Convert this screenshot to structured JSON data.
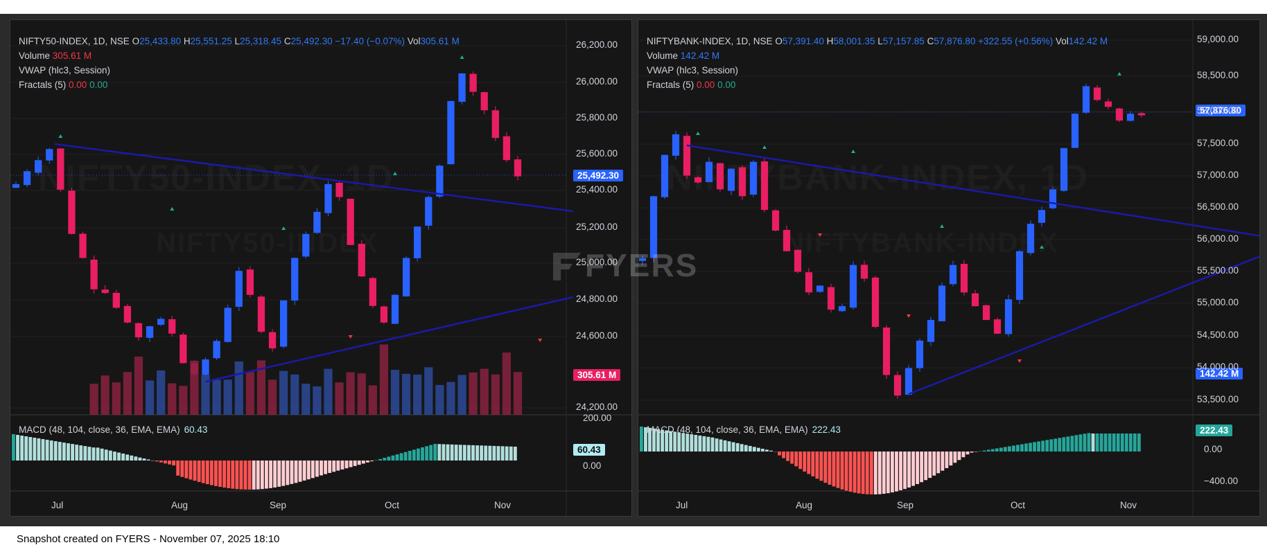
{
  "footer_text": "Snapshot created on FYERS - November 07, 2025 18:10",
  "logo_text": "FYERS",
  "colors": {
    "up": "#2962ff",
    "down": "#e91e63",
    "vol_up": "#2d4a9a",
    "vol_down": "#8a2240",
    "trend": "#1a1aa8",
    "hist_pos_dark": "#26a69a",
    "hist_pos_light": "#b2dfdb",
    "hist_neg_dark": "#ff5252",
    "hist_neg_light": "#ffcdd2"
  },
  "left": {
    "symbol": "NIFTY50-INDEX, 1D, NSE",
    "open_label": "O",
    "open": "25,433.80",
    "high_label": "H",
    "high": "25,551.25",
    "low_label": "L",
    "low": "25,318.45",
    "close_label": "C",
    "close": "25,492.30",
    "change": "−17.40 (−0.07%)",
    "vol_label": "Vol",
    "vol": "305.61 M",
    "volume_label": "Volume",
    "volume_value": "305.61 M",
    "vwap_label": "VWAP (hlc3, Session)",
    "fractals_label": "Fractals (5)",
    "fractal_up": "0.00",
    "fractal_down": "0.00",
    "macd_label": "MACD (48, 104, close, 36, EMA, EMA)",
    "macd_value": "60.43",
    "price_tag": "25,492.30",
    "volume_tag": "305.61 M",
    "macd_tag": "60.43",
    "watermark": "NIFTY50-INDEX, 1D",
    "watermark_sub": "NIFTY50-INDEX",
    "price_ticks": [
      "26,200.00",
      "26,000.00",
      "25,800.00",
      "25,600.00",
      "25,400.00",
      "25,200.00",
      "25,000.00",
      "24,800.00",
      "24,600.00",
      "24,200.00"
    ],
    "macd_ticks": [
      "200.00",
      "0.00"
    ],
    "months": [
      "Jul",
      "Aug",
      "Sep",
      "Oct",
      "Nov"
    ]
  },
  "right": {
    "symbol": "NIFTYBANK-INDEX, 1D, NSE",
    "open_label": "O",
    "open": "57,391.40",
    "high_label": "H",
    "high": "58,001.35",
    "low_label": "L",
    "low": "57,157.85",
    "close_label": "C",
    "close": "57,876.80",
    "change": "+322.55 (+0.56%)",
    "vol_label": "Vol",
    "vol": "142.42 M",
    "volume_label": "Volume",
    "volume_value": "142.42 M",
    "vwap_label": "VWAP (hlc3, Session)",
    "fractals_label": "Fractals (5)",
    "fractal_up": "0.00",
    "fractal_down": "0.00",
    "macd_label": "MACD (48, 104, close, 36, EMA, EMA)",
    "macd_value": "222.43",
    "price_tag": "57,876.80",
    "volume_tag": "142.42 M",
    "macd_tag": "222.43",
    "watermark": "NIFTYBANK-INDEX, 1D",
    "watermark_sub": "NIFTYBANK-INDEX",
    "price_ticks": [
      "59,000.00",
      "58,500.00",
      "58,000.00",
      "57,500.00",
      "57,000.00",
      "56,500.00",
      "56,000.00",
      "55,500.00",
      "55,000.00",
      "54,500.00",
      "54,000.00",
      "53,500.00"
    ],
    "macd_ticks": [
      "0.00",
      "−400.00"
    ],
    "months": [
      "Jul",
      "Aug",
      "Sep",
      "Oct",
      "Nov"
    ]
  },
  "chart_data": [
    {
      "type": "candlestick",
      "title": "NIFTY50-INDEX, 1D, NSE",
      "x_labels": [
        "Jul",
        "Aug",
        "Sep",
        "Oct",
        "Nov"
      ],
      "y_range": [
        24200,
        26200
      ],
      "last_close": 25492.3,
      "close_series": [
        25450,
        25520,
        25580,
        25640,
        25420,
        25180,
        25050,
        24880,
        24860,
        24780,
        24700,
        24620,
        24680,
        24720,
        24640,
        24480,
        24420,
        24500,
        24600,
        24780,
        24980,
        24850,
        24650,
        24560,
        24820,
        25050,
        25180,
        25300,
        25450,
        25380,
        25120,
        24950,
        24790,
        24700,
        24850,
        25050,
        25220,
        25380,
        25550,
        25900,
        26050,
        25950,
        25850,
        25700,
        25580,
        25492
      ]
    },
    {
      "type": "candlestick",
      "title": "NIFTYBANK-INDEX, 1D, NSE",
      "x_labels": [
        "Jul",
        "Aug",
        "Sep",
        "Oct",
        "Nov"
      ],
      "y_range": [
        53500,
        59000
      ],
      "last_close": 57876.8,
      "close_series": [
        55800,
        56700,
        57300,
        57600,
        57000,
        56900,
        57200,
        56800,
        57100,
        56700,
        57200,
        56500,
        56200,
        55900,
        55600,
        55300,
        55400,
        55050,
        55100,
        55700,
        55500,
        54800,
        54100,
        53800,
        54200,
        54600,
        54900,
        55400,
        55700,
        55300,
        55100,
        54900,
        54700,
        55200,
        55900,
        56300,
        56500,
        56800,
        57400,
        57900,
        58300,
        58100,
        58000,
        57800,
        57900,
        57877
      ]
    }
  ]
}
